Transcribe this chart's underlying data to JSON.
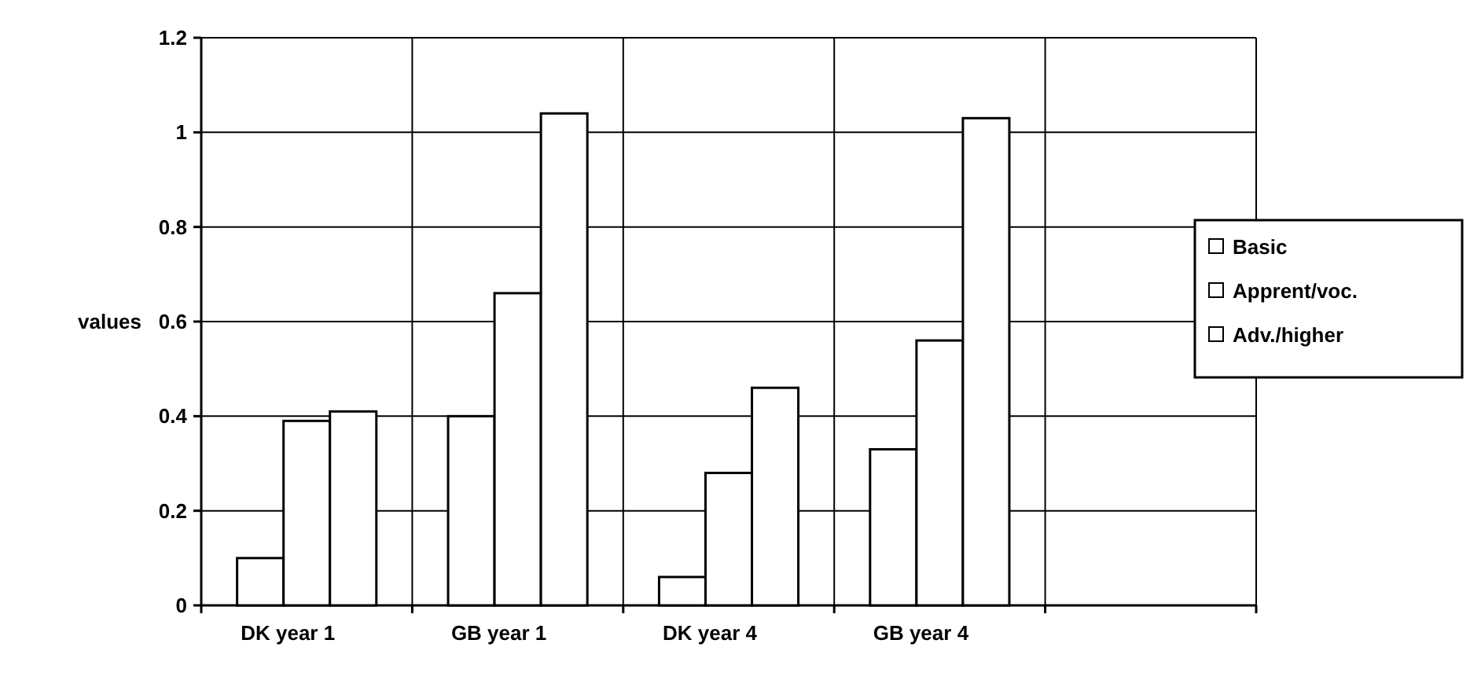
{
  "chart_data": {
    "type": "bar",
    "ylabel": "values",
    "categories": [
      "DK year 1",
      "GB year 1",
      "DK year 4",
      "GB year 4",
      null
    ],
    "series": [
      {
        "name": "Basic",
        "color": "#ffffff",
        "values": [
          0.1,
          0.4,
          0.06,
          0.33,
          null
        ]
      },
      {
        "name": "Apprent/voc.",
        "color": "#ffffff",
        "values": [
          0.39,
          0.66,
          0.28,
          0.56,
          null
        ]
      },
      {
        "name": "Adv./higher",
        "color": "#ffffff",
        "values": [
          0.41,
          1.04,
          0.46,
          1.03,
          null
        ]
      }
    ],
    "ylim": [
      0,
      1.2
    ],
    "yticks": [
      0,
      0.2,
      0.4,
      0.6,
      0.8,
      1,
      1.2
    ],
    "grid": true,
    "legend": "right"
  }
}
